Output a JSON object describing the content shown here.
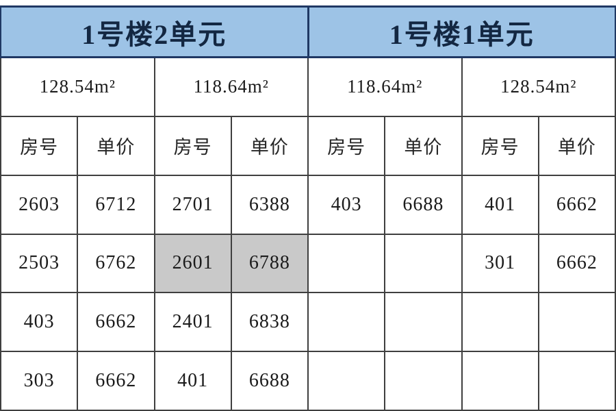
{
  "colors": {
    "section_header_bg": "#9dc3e6",
    "section_header_border": "#1f3864",
    "section_header_text": "#132742",
    "grid_line": "#3f3f3f",
    "cell_text": "#1b1b1b",
    "highlight_bg": "#c9c9c9",
    "page_bg": "#ffffff"
  },
  "table": {
    "section_titles": [
      "1号楼2单元",
      "1号楼1单元"
    ],
    "area_labels": [
      "128.54m²",
      "118.64m²",
      "118.64m²",
      "128.54m²"
    ],
    "column_headers": [
      "房号",
      "单价",
      "房号",
      "单价",
      "房号",
      "单价",
      "房号",
      "单价"
    ],
    "rows": [
      [
        "2603",
        "6712",
        "2701",
        "6388",
        "403",
        "6688",
        "401",
        "6662"
      ],
      [
        "2503",
        "6762",
        "2601",
        "6788",
        "",
        "",
        "301",
        "6662"
      ],
      [
        "403",
        "6662",
        "2401",
        "6838",
        "",
        "",
        "",
        ""
      ],
      [
        "303",
        "6662",
        "401",
        "6688",
        "",
        "",
        "",
        ""
      ]
    ],
    "highlighted_cells": [
      {
        "row": 1,
        "col": 2,
        "value": "2601"
      },
      {
        "row": 1,
        "col": 3,
        "value": "6788"
      }
    ]
  }
}
